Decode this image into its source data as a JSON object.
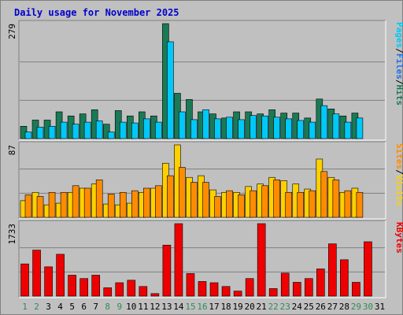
{
  "title": "Daily usage for November 2025",
  "colors": {
    "hits": "#1a7a55",
    "files": "#00c8f8",
    "pages": "#00c8f8",
    "visits": "#ff8c00",
    "sites": "#ffd000",
    "kbytes": "#ee0000",
    "weekend": "#2e8b57",
    "weekday": "#000000",
    "background": "#c0c0c0",
    "title": "#0000cc"
  },
  "chart_data": [
    {
      "type": "bar",
      "name": "hits-files",
      "ymax_label": "279",
      "ylim": [
        0,
        279
      ],
      "legend": [
        {
          "text": "Pages",
          "color": "#00c8f8"
        },
        {
          "text": "/",
          "color": "#000000"
        },
        {
          "text": "Files",
          "color": "#1e6ee6"
        },
        {
          "text": "/",
          "color": "#000000"
        },
        {
          "text": "Hits",
          "color": "#1a7a55"
        }
      ],
      "categories": [
        "1",
        "2",
        "3",
        "4",
        "5",
        "6",
        "7",
        "8",
        "9",
        "10",
        "11",
        "12",
        "13",
        "14",
        "15",
        "16",
        "17",
        "18",
        "19",
        "20",
        "21",
        "22",
        "23",
        "24",
        "25",
        "26",
        "27",
        "28",
        "29",
        "30",
        "31"
      ],
      "series": [
        {
          "name": "Hits",
          "values": [
            30,
            45,
            45,
            65,
            55,
            60,
            70,
            35,
            68,
            55,
            65,
            55,
            279,
            110,
            95,
            65,
            60,
            50,
            65,
            65,
            60,
            70,
            62,
            62,
            50,
            96,
            72,
            55,
            62,
            0,
            0
          ]
        },
        {
          "name": "Files",
          "values": [
            16,
            28,
            30,
            40,
            35,
            40,
            43,
            16,
            40,
            38,
            48,
            40,
            235,
            65,
            46,
            70,
            48,
            52,
            46,
            56,
            55,
            52,
            48,
            44,
            40,
            80,
            60,
            40,
            50,
            0,
            0
          ]
        }
      ]
    },
    {
      "type": "bar",
      "name": "visits-sites",
      "ymax_label": "87",
      "ylim": [
        0,
        87
      ],
      "legend": [
        {
          "text": "Sites",
          "color": "#ff8c00"
        },
        {
          "text": "/",
          "color": "#000000"
        },
        {
          "text": "Visits",
          "color": "#ffd000"
        }
      ],
      "categories": [
        "1",
        "2",
        "3",
        "4",
        "5",
        "6",
        "7",
        "8",
        "9",
        "10",
        "11",
        "12",
        "13",
        "14",
        "15",
        "16",
        "17",
        "18",
        "19",
        "20",
        "21",
        "22",
        "23",
        "24",
        "25",
        "26",
        "27",
        "28",
        "29",
        "30",
        "31"
      ],
      "series": [
        {
          "name": "Sites",
          "values": [
            20,
            30,
            15,
            17,
            30,
            35,
            40,
            16,
            15,
            17,
            30,
            35,
            65,
            87,
            48,
            50,
            33,
            30,
            30,
            37,
            40,
            48,
            44,
            40,
            34,
            70,
            48,
            30,
            35,
            0,
            0
          ]
        },
        {
          "name": "Visits",
          "values": [
            27,
            25,
            30,
            30,
            38,
            35,
            45,
            28,
            30,
            32,
            35,
            38,
            50,
            60,
            42,
            42,
            25,
            32,
            27,
            32,
            38,
            45,
            30,
            30,
            32,
            55,
            45,
            32,
            30,
            0,
            0
          ]
        }
      ]
    },
    {
      "type": "bar",
      "name": "kbytes",
      "ymax_label": "1733",
      "ylim": [
        0,
        1733
      ],
      "legend": [
        {
          "text": "KBytes",
          "color": "#ee0000"
        }
      ],
      "categories": [
        "1",
        "2",
        "3",
        "4",
        "5",
        "6",
        "7",
        "8",
        "9",
        "10",
        "11",
        "12",
        "13",
        "14",
        "15",
        "16",
        "17",
        "18",
        "19",
        "20",
        "21",
        "22",
        "23",
        "24",
        "25",
        "26",
        "27",
        "28",
        "29",
        "30",
        "31"
      ],
      "series": [
        {
          "name": "KBytes",
          "values": [
            770,
            1100,
            700,
            1000,
            500,
            420,
            500,
            200,
            320,
            380,
            230,
            60,
            1220,
            1733,
            540,
            350,
            320,
            230,
            120,
            420,
            1733,
            180,
            550,
            330,
            420,
            650,
            1250,
            870,
            330,
            1300,
            0
          ]
        }
      ]
    }
  ],
  "x_labels": [
    {
      "text": "1",
      "weekend": true
    },
    {
      "text": "2",
      "weekend": true
    },
    {
      "text": "3",
      "weekend": false
    },
    {
      "text": "4",
      "weekend": false
    },
    {
      "text": "5",
      "weekend": false
    },
    {
      "text": "6",
      "weekend": false
    },
    {
      "text": "7",
      "weekend": false
    },
    {
      "text": "8",
      "weekend": true
    },
    {
      "text": "9",
      "weekend": true
    },
    {
      "text": "10",
      "weekend": false
    },
    {
      "text": "11",
      "weekend": false
    },
    {
      "text": "12",
      "weekend": false
    },
    {
      "text": "13",
      "weekend": false
    },
    {
      "text": "14",
      "weekend": false
    },
    {
      "text": "15",
      "weekend": true
    },
    {
      "text": "16",
      "weekend": true
    },
    {
      "text": "17",
      "weekend": false
    },
    {
      "text": "18",
      "weekend": false
    },
    {
      "text": "19",
      "weekend": false
    },
    {
      "text": "20",
      "weekend": false
    },
    {
      "text": "21",
      "weekend": false
    },
    {
      "text": "22",
      "weekend": true
    },
    {
      "text": "23",
      "weekend": true
    },
    {
      "text": "24",
      "weekend": false
    },
    {
      "text": "25",
      "weekend": false
    },
    {
      "text": "26",
      "weekend": false
    },
    {
      "text": "27",
      "weekend": false
    },
    {
      "text": "28",
      "weekend": false
    },
    {
      "text": "29",
      "weekend": true
    },
    {
      "text": "30",
      "weekend": true
    },
    {
      "text": "31",
      "weekend": false
    }
  ]
}
